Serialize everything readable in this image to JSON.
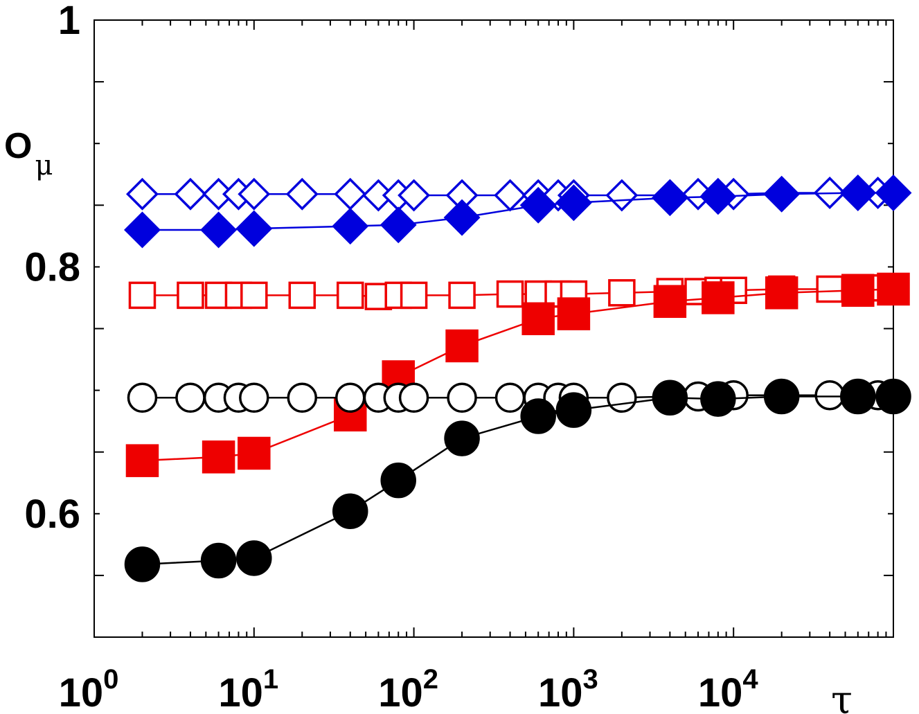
{
  "chart_data": {
    "type": "line",
    "x_scale": "log",
    "xlim": [
      1,
      100000
    ],
    "ylim": [
      0.5,
      1.0
    ],
    "xlabel": "τ",
    "ylabel": "O",
    "ylabel_subscript": "μ",
    "grid": false,
    "yticks": [
      {
        "value": 0.6,
        "label": "0.6"
      },
      {
        "value": 0.8,
        "label": "0.8"
      },
      {
        "value": 1.0,
        "label": "1"
      }
    ],
    "xticks": [
      {
        "value": 1,
        "base": "10",
        "exp": "0"
      },
      {
        "value": 10,
        "base": "10",
        "exp": "1"
      },
      {
        "value": 100,
        "base": "10",
        "exp": "2"
      },
      {
        "value": 1000,
        "base": "10",
        "exp": "3"
      },
      {
        "value": 10000,
        "base": "10",
        "exp": "4"
      }
    ],
    "series": [
      {
        "marker": "diamond",
        "filled": false,
        "color": "#0000dd",
        "x": [
          2,
          4,
          6,
          8,
          10,
          20,
          40,
          60,
          80,
          100,
          200,
          400,
          600,
          800,
          1000,
          2000,
          4000,
          6000,
          8000,
          10000,
          20000,
          40000,
          60000,
          80000,
          100000
        ],
        "y": [
          0.859,
          0.859,
          0.859,
          0.859,
          0.859,
          0.859,
          0.859,
          0.858,
          0.858,
          0.858,
          0.858,
          0.858,
          0.858,
          0.858,
          0.858,
          0.858,
          0.858,
          0.859,
          0.859,
          0.859,
          0.86,
          0.86,
          0.86,
          0.86,
          0.86
        ]
      },
      {
        "marker": "diamond",
        "filled": true,
        "color": "#0000dd",
        "x": [
          2,
          6,
          10,
          40,
          80,
          200,
          600,
          1000,
          4000,
          8000,
          20000,
          60000,
          100000
        ],
        "y": [
          0.83,
          0.83,
          0.831,
          0.833,
          0.834,
          0.84,
          0.85,
          0.852,
          0.856,
          0.857,
          0.859,
          0.86,
          0.86
        ]
      },
      {
        "marker": "square",
        "filled": false,
        "color": "#ee0000",
        "x": [
          2,
          4,
          6,
          8,
          10,
          20,
          40,
          60,
          80,
          100,
          200,
          400,
          600,
          800,
          1000,
          2000,
          4000,
          6000,
          8000,
          10000,
          20000,
          40000,
          60000,
          80000,
          100000
        ],
        "y": [
          0.777,
          0.777,
          0.777,
          0.777,
          0.777,
          0.777,
          0.777,
          0.776,
          0.777,
          0.777,
          0.777,
          0.778,
          0.778,
          0.778,
          0.778,
          0.779,
          0.78,
          0.78,
          0.781,
          0.781,
          0.782,
          0.782,
          0.783,
          0.783,
          0.783
        ]
      },
      {
        "marker": "square",
        "filled": true,
        "color": "#ee0000",
        "x": [
          2,
          6,
          10,
          40,
          80,
          200,
          600,
          1000,
          4000,
          8000,
          20000,
          60000,
          100000
        ],
        "y": [
          0.643,
          0.646,
          0.649,
          0.68,
          0.711,
          0.736,
          0.758,
          0.762,
          0.772,
          0.775,
          0.779,
          0.781,
          0.782
        ]
      },
      {
        "marker": "circle",
        "filled": false,
        "color": "#000000",
        "x": [
          2,
          4,
          6,
          8,
          10,
          20,
          40,
          60,
          80,
          100,
          200,
          400,
          600,
          800,
          1000,
          2000,
          4000,
          6000,
          8000,
          10000,
          20000,
          40000,
          60000,
          80000,
          100000
        ],
        "y": [
          0.694,
          0.694,
          0.694,
          0.694,
          0.694,
          0.694,
          0.694,
          0.694,
          0.694,
          0.694,
          0.694,
          0.694,
          0.694,
          0.694,
          0.694,
          0.694,
          0.695,
          0.695,
          0.695,
          0.696,
          0.696,
          0.696,
          0.696,
          0.696,
          0.696
        ]
      },
      {
        "marker": "circle",
        "filled": true,
        "color": "#000000",
        "x": [
          2,
          6,
          10,
          40,
          80,
          200,
          600,
          1000,
          4000,
          8000,
          20000,
          60000,
          100000
        ],
        "y": [
          0.559,
          0.562,
          0.564,
          0.602,
          0.627,
          0.661,
          0.679,
          0.684,
          0.694,
          0.693,
          0.695,
          0.695,
          0.695
        ]
      }
    ]
  }
}
